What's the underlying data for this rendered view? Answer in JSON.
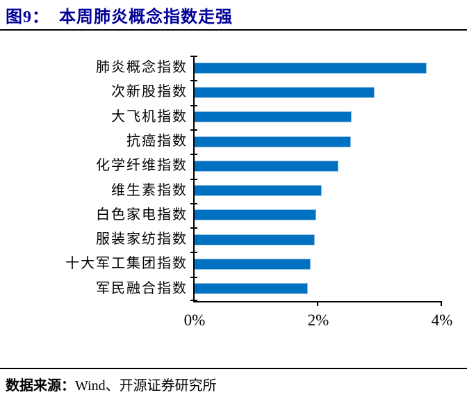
{
  "figure": {
    "label": "图9：",
    "title": "本周肺炎概念指数走强"
  },
  "source": {
    "label": "数据来源：",
    "value": "Wind、开源证券研究所"
  },
  "chart_data": {
    "type": "bar",
    "orientation": "horizontal",
    "title": "本周肺炎概念指数走强",
    "categories": [
      "肺炎概念指数",
      "次新股指数",
      "大飞机指数",
      "抗癌指数",
      "化学纤维指数",
      "维生素指数",
      "白色家电指数",
      "服装家纺指数",
      "十大军工集团指数",
      "军民融合指数"
    ],
    "values": [
      3.74,
      2.9,
      2.53,
      2.52,
      2.32,
      2.04,
      1.96,
      1.93,
      1.87,
      1.82
    ],
    "unit": "%",
    "xlabel": "",
    "ylabel": "",
    "xlim": [
      0,
      4
    ],
    "xticks": [
      {
        "value": 0,
        "label": "0%"
      },
      {
        "value": 2,
        "label": "2%"
      },
      {
        "value": 4,
        "label": "4%"
      }
    ],
    "grid": false,
    "legend": null,
    "bar_color": "#0070C0",
    "bar_border_color": "#9DC3E6",
    "axis_color": "#000000"
  }
}
